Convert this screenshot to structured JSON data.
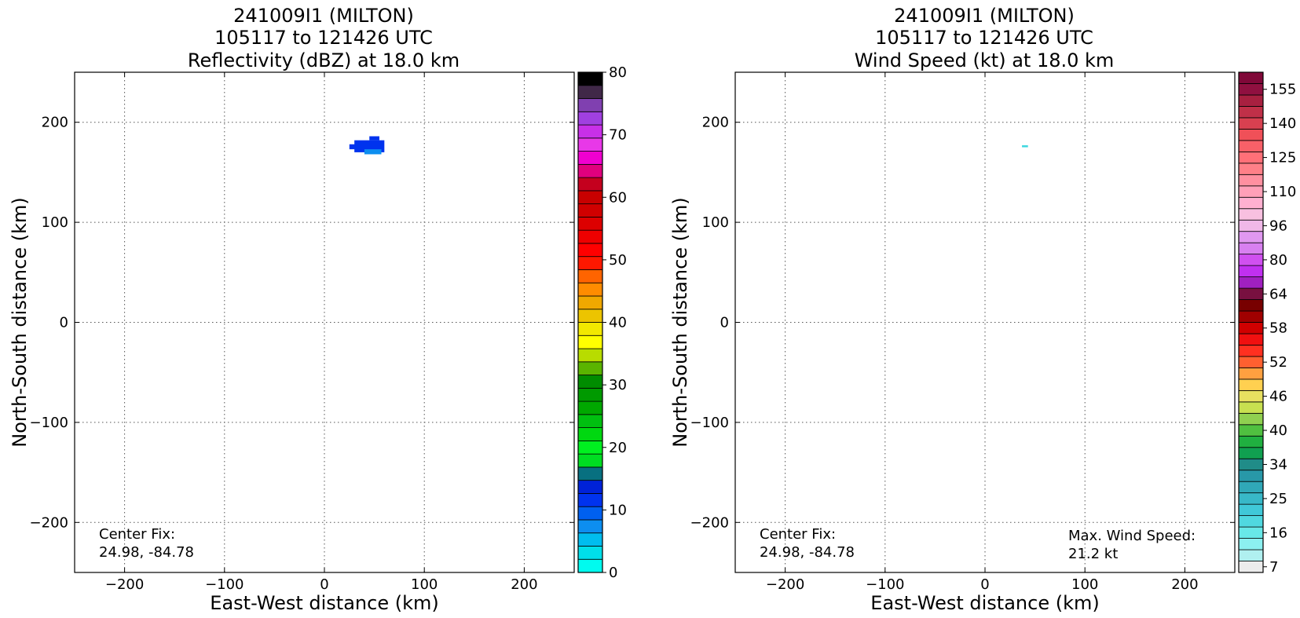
{
  "chart_data": [
    {
      "type": "heatmap",
      "title_lines": [
        "241009I1 (MILTON)",
        "105117 to 121426 UTC",
        "Reflectivity (dBZ) at 18.0 km"
      ],
      "xlabel": "East-West distance (km)",
      "ylabel": "North-South distance (km)",
      "xlim": [
        -250,
        250
      ],
      "ylim": [
        -250,
        250
      ],
      "xticks": [
        -200,
        -100,
        0,
        100,
        200
      ],
      "yticks": [
        -200,
        -100,
        0,
        100,
        200
      ],
      "xtick_labels": [
        "−200",
        "−100",
        "0",
        "100",
        "200"
      ],
      "ytick_labels": [
        "−200",
        "−100",
        "0",
        "100",
        "200"
      ],
      "grid": true,
      "annotations": [
        {
          "name": "center-fix",
          "lines": [
            "Center Fix:",
            "24.98, -84.78"
          ]
        }
      ],
      "features": [
        {
          "name": "echo-main",
          "x0": 30,
          "x1": 60,
          "y0": 170,
          "y1": 182,
          "value": 10.5,
          "color": "#0033ee"
        },
        {
          "name": "echo-top",
          "x0": 45,
          "x1": 55,
          "y0": 182,
          "y1": 186,
          "value": 10.5,
          "color": "#0033ee"
        },
        {
          "name": "echo-left",
          "x0": 25,
          "x1": 31,
          "y0": 173,
          "y1": 178,
          "value": 10.5,
          "color": "#0033ee"
        },
        {
          "name": "echo-light",
          "x0": 40,
          "x1": 57,
          "y0": 168,
          "y1": 173,
          "value": 6,
          "color": "#0d8ef0"
        }
      ],
      "colorbar": {
        "min": 0,
        "max": 80,
        "tick_values": [
          0,
          10,
          20,
          30,
          40,
          50,
          60,
          70,
          80
        ],
        "tick_labels": [
          "0",
          "10",
          "20",
          "30",
          "40",
          "50",
          "60",
          "70",
          "80"
        ],
        "colors": [
          "#00fbef",
          "#00dfe9",
          "#00bdef",
          "#0d8ef0",
          "#0060f0",
          "#0033ee",
          "#0022d8",
          "#087080",
          "#00dd22",
          "#00f020",
          "#00d810",
          "#00c010",
          "#00a800",
          "#009a00",
          "#008c00",
          "#5ab400",
          "#b8dc00",
          "#ffff00",
          "#f2e800",
          "#ecc400",
          "#f0a800",
          "#ff8c00",
          "#ff6400",
          "#ff1800",
          "#ff0000",
          "#ee0000",
          "#dd0000",
          "#d00000",
          "#c80000",
          "#c4001e",
          "#e0007e",
          "#f000d0",
          "#e838e8",
          "#c830e8",
          "#a040e0",
          "#8040b0",
          "#402848",
          "#000000"
        ]
      }
    },
    {
      "type": "heatmap",
      "title_lines": [
        "241009I1 (MILTON)",
        "105117 to 121426 UTC",
        "Wind Speed (kt) at 18.0 km"
      ],
      "xlabel": "East-West distance (km)",
      "ylabel": "North-South distance (km)",
      "xlim": [
        -250,
        250
      ],
      "ylim": [
        -250,
        250
      ],
      "xticks": [
        -200,
        -100,
        0,
        100,
        200
      ],
      "yticks": [
        -200,
        -100,
        0,
        100,
        200
      ],
      "xtick_labels": [
        "−200",
        "−100",
        "0",
        "100",
        "200"
      ],
      "ytick_labels": [
        "−200",
        "−100",
        "0",
        "100",
        "200"
      ],
      "grid": true,
      "annotations": [
        {
          "name": "center-fix",
          "lines": [
            "Center Fix:",
            "24.98, -84.78"
          ]
        },
        {
          "name": "max-wind-speed",
          "lines": [
            "Max. Wind Speed:",
            "21.2 kt"
          ]
        }
      ],
      "features": [
        {
          "name": "wind-speck",
          "x0": 37,
          "x1": 43,
          "y0": 175,
          "y1": 177,
          "value": 21.2,
          "color": "#40d8e0"
        }
      ],
      "colorbar": {
        "tick_labels": [
          "7",
          "16",
          "25",
          "34",
          "40",
          "46",
          "52",
          "58",
          "64",
          "80",
          "96",
          "110",
          "125",
          "140",
          "155"
        ],
        "tick_bin_indices": [
          0,
          3,
          6,
          9,
          12,
          15,
          18,
          21,
          24,
          27,
          30,
          33,
          36,
          39,
          42
        ],
        "colors": [
          "#ececec",
          "#b0f0f0",
          "#8cf0f0",
          "#68e8e8",
          "#50d8e0",
          "#40c8d8",
          "#38b8c8",
          "#30a8b8",
          "#2898a8",
          "#208c88",
          "#10a050",
          "#20b040",
          "#50c040",
          "#90d050",
          "#c8e050",
          "#e8e060",
          "#ffd050",
          "#ffa040",
          "#ff6030",
          "#ff3020",
          "#f01010",
          "#d00000",
          "#a00000",
          "#780000",
          "#781040",
          "#a020c0",
          "#c030f0",
          "#d050f0",
          "#d880f0",
          "#e098f0",
          "#f0b8e8",
          "#f8c0e0",
          "#ffb0d0",
          "#ffa0b8",
          "#ff90a0",
          "#ff8088",
          "#ff7078",
          "#f86068",
          "#f05058",
          "#d84050",
          "#c03048",
          "#a82040",
          "#901040",
          "#800838"
        ]
      }
    }
  ]
}
